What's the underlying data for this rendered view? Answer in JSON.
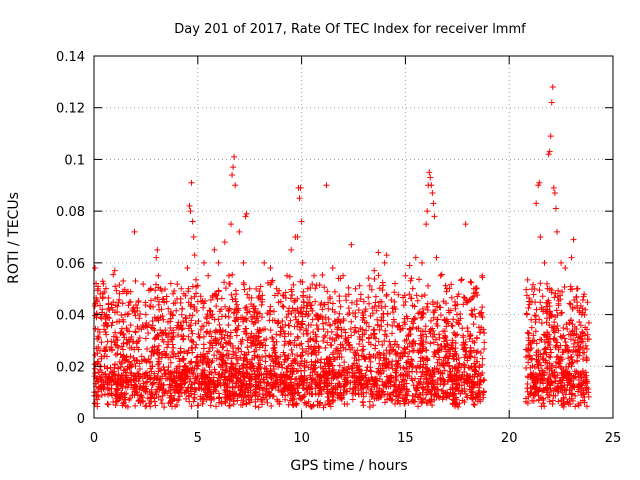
{
  "chart_data": {
    "type": "scatter",
    "title": "Day 201 of 2017, Rate Of TEC Index for receiver lmmf",
    "xlabel": "GPS time / hours",
    "ylabel": "ROTI / TECUs",
    "xlim": [
      0,
      25
    ],
    "ylim": [
      0,
      0.14
    ],
    "x_ticks": [
      "0",
      "5",
      "10",
      "15",
      "20",
      "25"
    ],
    "y_ticks": [
      "0",
      "0.02",
      "0.04",
      "0.06",
      "0.08",
      "0.1",
      "0.12",
      "0.14"
    ],
    "grid": true,
    "marker": "+",
    "data_gap_hours": [
      18.8,
      20.8
    ],
    "series": [
      {
        "color": "#ff0000",
        "points": [
          [
            0.05,
            0.058
          ],
          [
            0.1,
            0.052
          ],
          [
            0.15,
            0.045
          ],
          [
            0.2,
            0.05
          ],
          [
            0.3,
            0.048
          ],
          [
            0.4,
            0.042
          ],
          [
            0.5,
            0.04
          ],
          [
            0.6,
            0.036
          ],
          [
            1.0,
            0.057
          ],
          [
            1.4,
            0.038
          ],
          [
            1.6,
            0.034
          ],
          [
            1.95,
            0.072
          ],
          [
            2.0,
            0.053
          ],
          [
            2.5,
            0.04
          ],
          [
            3.0,
            0.062
          ],
          [
            3.05,
            0.065
          ],
          [
            3.1,
            0.055
          ],
          [
            3.2,
            0.05
          ],
          [
            3.5,
            0.045
          ],
          [
            3.7,
            0.052
          ],
          [
            4.0,
            0.046
          ],
          [
            4.2,
            0.05
          ],
          [
            4.5,
            0.058
          ],
          [
            4.55,
            0.05
          ],
          [
            4.6,
            0.082
          ],
          [
            4.65,
            0.08
          ],
          [
            4.7,
            0.091
          ],
          [
            4.75,
            0.076
          ],
          [
            4.8,
            0.07
          ],
          [
            4.85,
            0.063
          ],
          [
            5.0,
            0.045
          ],
          [
            5.3,
            0.06
          ],
          [
            5.5,
            0.055
          ],
          [
            5.8,
            0.065
          ],
          [
            6.0,
            0.06
          ],
          [
            6.3,
            0.068
          ],
          [
            6.5,
            0.055
          ],
          [
            6.6,
            0.075
          ],
          [
            6.65,
            0.094
          ],
          [
            6.7,
            0.097
          ],
          [
            6.75,
            0.101
          ],
          [
            6.8,
            0.09
          ],
          [
            7.0,
            0.072
          ],
          [
            7.2,
            0.06
          ],
          [
            7.3,
            0.078
          ],
          [
            7.35,
            0.079
          ],
          [
            7.5,
            0.05
          ],
          [
            8.0,
            0.046
          ],
          [
            8.2,
            0.06
          ],
          [
            8.5,
            0.058
          ],
          [
            8.8,
            0.05
          ],
          [
            9.0,
            0.045
          ],
          [
            9.3,
            0.055
          ],
          [
            9.5,
            0.065
          ],
          [
            9.7,
            0.07
          ],
          [
            9.8,
            0.07
          ],
          [
            9.85,
            0.089
          ],
          [
            9.9,
            0.085
          ],
          [
            9.95,
            0.089
          ],
          [
            10.0,
            0.076
          ],
          [
            10.05,
            0.06
          ],
          [
            10.3,
            0.05
          ],
          [
            10.6,
            0.055
          ],
          [
            11.0,
            0.042
          ],
          [
            11.2,
            0.09
          ],
          [
            11.5,
            0.058
          ],
          [
            12.0,
            0.055
          ],
          [
            12.4,
            0.067
          ],
          [
            12.6,
            0.05
          ],
          [
            13.0,
            0.045
          ],
          [
            13.5,
            0.057
          ],
          [
            13.7,
            0.064
          ],
          [
            14.0,
            0.06
          ],
          [
            14.1,
            0.063
          ],
          [
            14.5,
            0.052
          ],
          [
            15.0,
            0.055
          ],
          [
            15.2,
            0.059
          ],
          [
            15.5,
            0.062
          ],
          [
            15.8,
            0.06
          ],
          [
            16.0,
            0.075
          ],
          [
            16.05,
            0.08
          ],
          [
            16.1,
            0.09
          ],
          [
            16.15,
            0.095
          ],
          [
            16.2,
            0.093
          ],
          [
            16.25,
            0.09
          ],
          [
            16.3,
            0.087
          ],
          [
            16.35,
            0.083
          ],
          [
            16.4,
            0.078
          ],
          [
            16.5,
            0.062
          ],
          [
            16.7,
            0.055
          ],
          [
            17.0,
            0.05
          ],
          [
            17.5,
            0.047
          ],
          [
            17.9,
            0.075
          ],
          [
            18.0,
            0.045
          ],
          [
            18.3,
            0.05
          ],
          [
            18.7,
            0.055
          ],
          [
            21.0,
            0.045
          ],
          [
            21.2,
            0.03
          ],
          [
            21.3,
            0.083
          ],
          [
            21.4,
            0.09
          ],
          [
            21.45,
            0.091
          ],
          [
            21.5,
            0.07
          ],
          [
            21.7,
            0.06
          ],
          [
            21.9,
            0.102
          ],
          [
            21.95,
            0.103
          ],
          [
            22.0,
            0.109
          ],
          [
            22.05,
            0.122
          ],
          [
            22.1,
            0.128
          ],
          [
            22.15,
            0.089
          ],
          [
            22.2,
            0.087
          ],
          [
            22.25,
            0.081
          ],
          [
            22.3,
            0.072
          ],
          [
            22.5,
            0.06
          ],
          [
            22.7,
            0.058
          ],
          [
            23.0,
            0.062
          ],
          [
            23.1,
            0.069
          ],
          [
            23.3,
            0.05
          ],
          [
            23.5,
            0.04
          ]
        ]
      }
    ]
  }
}
